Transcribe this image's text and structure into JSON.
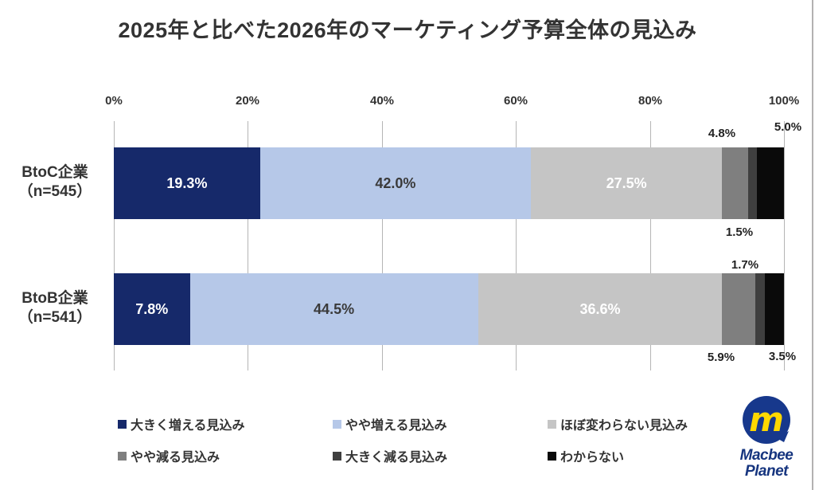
{
  "chart_data": {
    "type": "bar",
    "variant": "horizontal-stacked",
    "title": "2025年と比べた2026年のマーケティング予算全体の見込み",
    "x_axis": {
      "min": 0,
      "max": 100,
      "unit": "%",
      "gridlines": true,
      "tick_labels": [
        "0%",
        "20%",
        "40%",
        "60%",
        "80%",
        "100%"
      ]
    },
    "categories": [
      {
        "name": "BtoC企業",
        "n_label": "（n=545）"
      },
      {
        "name": "BtoB企業",
        "n_label": "（n=541）"
      }
    ],
    "series": [
      {
        "name": "大きく増える見込み",
        "color": "#16296a",
        "inside_label_color": "#ffffff",
        "values": [
          19.3,
          7.8
        ]
      },
      {
        "name": "やや増える見込み",
        "color": "#b6c8e8",
        "inside_label_color": "#3a3a3a",
        "values": [
          42.0,
          44.5
        ]
      },
      {
        "name": "ほぼ変わらない見込み",
        "color": "#c5c5c5",
        "inside_label_color": "#ffffff",
        "values": [
          27.5,
          36.6
        ]
      },
      {
        "name": "やや減る見込み",
        "color": "#7f7f7f",
        "values": [
          4.8,
          5.9
        ]
      },
      {
        "name": "大きく減る見込み",
        "color": "#3f3f3f",
        "values": [
          1.5,
          1.7
        ]
      },
      {
        "name": "わからない",
        "color": "#0a0a0a",
        "values": [
          5.0,
          3.5
        ]
      }
    ],
    "rows": [
      {
        "segment_labels": [
          "19.3%",
          "42.0%",
          "27.5%",
          "4.8%",
          "1.5%",
          "5.0%"
        ]
      },
      {
        "segment_labels": [
          "7.8%",
          "44.5%",
          "36.6%",
          "5.9%",
          "1.7%",
          "3.5%"
        ]
      }
    ],
    "legend": {
      "position": "bottom",
      "columns": 3
    }
  },
  "logo": {
    "line1": "Macbee",
    "line2": "Planet",
    "mark_letter": "m",
    "circle_color": "#17388c",
    "letter_color": "#ffd800",
    "text_color": "#16357f"
  }
}
